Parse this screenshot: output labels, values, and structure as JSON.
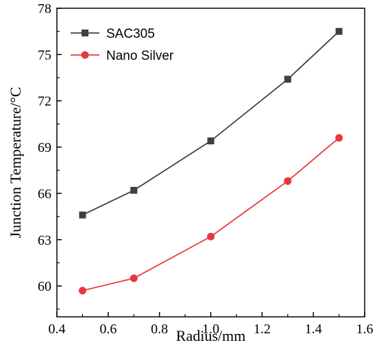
{
  "chart_data": {
    "type": "line",
    "xlabel": "Radius/mm",
    "ylabel": "Junction Temperature/°C",
    "xlim": [
      0.4,
      1.6
    ],
    "ylim": [
      58,
      78
    ],
    "xticks": [
      0.4,
      0.6,
      0.8,
      1.0,
      1.2,
      1.4,
      1.6
    ],
    "xtick_labels": [
      "0.4",
      "0.6",
      "0.8",
      "1.0",
      "1.2",
      "1.4",
      "1.6"
    ],
    "yticks": [
      60,
      63,
      66,
      69,
      72,
      75,
      78
    ],
    "ytick_labels": [
      "60",
      "63",
      "66",
      "69",
      "72",
      "75",
      "78"
    ],
    "grid": false,
    "legend_position": "top-left",
    "series": [
      {
        "name": "SAC305",
        "color": "#404040",
        "marker": "square",
        "x": [
          0.5,
          0.7,
          1.0,
          1.3,
          1.5
        ],
        "y": [
          64.6,
          66.2,
          69.4,
          73.4,
          76.5
        ]
      },
      {
        "name": "Nano Silver",
        "color": "#e8383d",
        "marker": "circle",
        "x": [
          0.5,
          0.7,
          1.0,
          1.3,
          1.5
        ],
        "y": [
          59.7,
          60.5,
          63.2,
          66.8,
          69.6
        ]
      }
    ]
  }
}
